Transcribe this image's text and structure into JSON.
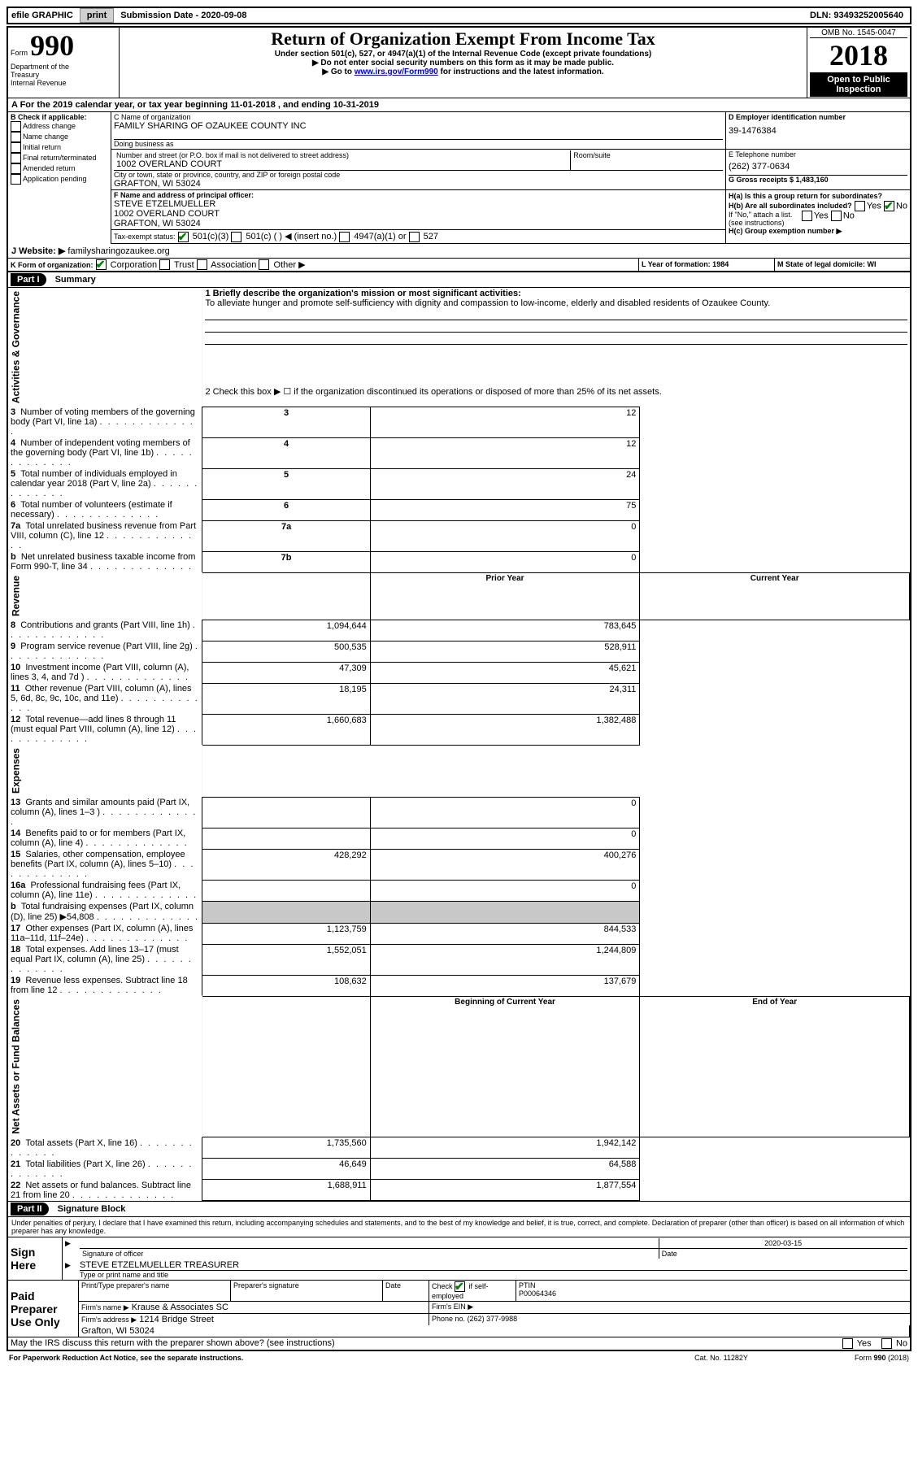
{
  "top_bar": {
    "efile_label": "efile GRAPHIC",
    "print_btn": "print",
    "submission_label": "Submission Date - 2020-09-08",
    "dln": "DLN: 93493252005640"
  },
  "header": {
    "form_word": "Form",
    "form_number": "990",
    "dept1": "Department of the",
    "dept2": "Treasury",
    "dept3": "Internal Revenue",
    "title": "Return of Organization Exempt From Income Tax",
    "subtitle": "Under section 501(c), 527, or 4947(a)(1) of the Internal Revenue Code (except private foundations)",
    "instr1": "▶ Do not enter social security numbers on this form as it may be made public.",
    "instr2_pre": "▶ Go to ",
    "instr2_link": "www.irs.gov/Form990",
    "instr2_post": " for instructions and the latest information.",
    "omb": "OMB No. 1545-0047",
    "year": "2018",
    "open_public": "Open to Public Inspection"
  },
  "line_a": "A For the 2019 calendar year, or tax year beginning 11-01-2018   , and ending 10-31-2019",
  "box_b": {
    "label": "B Check if applicable:",
    "opts": [
      "Address change",
      "Name change",
      "Initial return",
      "Final return/terminated",
      "Amended return",
      "Application pending"
    ]
  },
  "box_c": {
    "name_label": "C Name of organization",
    "name": "FAMILY SHARING OF OZAUKEE COUNTY INC",
    "dba_label": "Doing business as",
    "dba": "",
    "street_label": "Number and street (or P.O. box if mail is not delivered to street address)",
    "room_label": "Room/suite",
    "street": "1002 OVERLAND COURT",
    "city_label": "City or town, state or province, country, and ZIP or foreign postal code",
    "city": "GRAFTON, WI  53024"
  },
  "box_d": {
    "label": "D Employer identification number",
    "value": "39-1476384"
  },
  "box_e": {
    "label": "E Telephone number",
    "value": "(262) 377-0634"
  },
  "box_g": {
    "label": "G Gross receipts $ 1,483,160"
  },
  "box_f": {
    "label": "F  Name and address of principal officer:",
    "line1": "STEVE ETZELMUELLER",
    "line2": "1002 OVERLAND COURT",
    "line3": "GRAFTON, WI  53024"
  },
  "box_h": {
    "ha_label": "H(a)  Is this a group return for subordinates?",
    "ha_yes": "Yes",
    "ha_no": "No",
    "hb_label": "H(b)  Are all subordinates included?",
    "hb_yes": "Yes",
    "hb_no": "No",
    "hb_note": "If \"No,\" attach a list. (see instructions)",
    "hc_label": "H(c)  Group exemption number ▶"
  },
  "tax_exempt": {
    "label": "Tax-exempt status:",
    "opt1": "501(c)(3)",
    "opt2": "501(c) (   ) ◀ (insert no.)",
    "opt3": "4947(a)(1) or",
    "opt4": "527"
  },
  "website": {
    "label": "J   Website: ▶",
    "value": "familysharingozaukee.org"
  },
  "line_k": {
    "label": "K Form of organization:",
    "opts": [
      "Corporation",
      "Trust",
      "Association",
      "Other ▶"
    ]
  },
  "line_l": {
    "label": "L Year of formation: 1984"
  },
  "line_m": {
    "label": "M State of legal domicile: WI"
  },
  "part1": {
    "header": "Part I",
    "title": "Summary",
    "line1_label": "1   Briefly describe the organization's mission or most significant activities:",
    "mission": "To alleviate hunger and promote self-sufficiency with dignity and compassion to low-income, elderly and disabled residents of Ozaukee County.",
    "line2": "2   Check this box ▶ ☐  if the organization discontinued its operations or disposed of more than 25% of its net assets.",
    "rows_gov": [
      {
        "n": "3",
        "t": "Number of voting members of the governing body (Part VI, line 1a)",
        "box": "3",
        "v": "12"
      },
      {
        "n": "4",
        "t": "Number of independent voting members of the governing body (Part VI, line 1b)",
        "box": "4",
        "v": "12"
      },
      {
        "n": "5",
        "t": "Total number of individuals employed in calendar year 2018 (Part V, line 2a)",
        "box": "5",
        "v": "24"
      },
      {
        "n": "6",
        "t": "Total number of volunteers (estimate if necessary)",
        "box": "6",
        "v": "75"
      },
      {
        "n": "7a",
        "t": "Total unrelated business revenue from Part VIII, column (C), line 12",
        "box": "7a",
        "v": "0"
      },
      {
        "n": "b",
        "t": "Net unrelated business taxable income from Form 990-T, line 34",
        "box": "7b",
        "v": "0"
      }
    ],
    "col_prior": "Prior Year",
    "col_current": "Current Year",
    "revenue": [
      {
        "n": "8",
        "t": "Contributions and grants (Part VIII, line 1h)",
        "p": "1,094,644",
        "c": "783,645"
      },
      {
        "n": "9",
        "t": "Program service revenue (Part VIII, line 2g)",
        "p": "500,535",
        "c": "528,911"
      },
      {
        "n": "10",
        "t": "Investment income (Part VIII, column (A), lines 3, 4, and 7d )",
        "p": "47,309",
        "c": "45,621"
      },
      {
        "n": "11",
        "t": "Other revenue (Part VIII, column (A), lines 5, 6d, 8c, 9c, 10c, and 11e)",
        "p": "18,195",
        "c": "24,311"
      },
      {
        "n": "12",
        "t": "Total revenue—add lines 8 through 11 (must equal Part VIII, column (A), line 12)",
        "p": "1,660,683",
        "c": "1,382,488"
      }
    ],
    "expenses": [
      {
        "n": "13",
        "t": "Grants and similar amounts paid (Part IX, column (A), lines 1–3 )",
        "p": "",
        "c": "0"
      },
      {
        "n": "14",
        "t": "Benefits paid to or for members (Part IX, column (A), line 4)",
        "p": "",
        "c": "0"
      },
      {
        "n": "15",
        "t": "Salaries, other compensation, employee benefits (Part IX, column (A), lines 5–10)",
        "p": "428,292",
        "c": "400,276"
      },
      {
        "n": "16a",
        "t": "Professional fundraising fees (Part IX, column (A), line 11e)",
        "p": "",
        "c": "0"
      },
      {
        "n": "b",
        "t": "Total fundraising expenses (Part IX, column (D), line 25) ▶54,808",
        "p": "SHADE",
        "c": "SHADE"
      },
      {
        "n": "17",
        "t": "Other expenses (Part IX, column (A), lines 11a–11d, 11f–24e)",
        "p": "1,123,759",
        "c": "844,533"
      },
      {
        "n": "18",
        "t": "Total expenses. Add lines 13–17 (must equal Part IX, column (A), line 25)",
        "p": "1,552,051",
        "c": "1,244,809"
      },
      {
        "n": "19",
        "t": "Revenue less expenses. Subtract line 18 from line 12",
        "p": "108,632",
        "c": "137,679"
      }
    ],
    "col_begin": "Beginning of Current Year",
    "col_end": "End of Year",
    "netassets": [
      {
        "n": "20",
        "t": "Total assets (Part X, line 16)",
        "p": "1,735,560",
        "c": "1,942,142"
      },
      {
        "n": "21",
        "t": "Total liabilities (Part X, line 26)",
        "p": "46,649",
        "c": "64,588"
      },
      {
        "n": "22",
        "t": "Net assets or fund balances. Subtract line 21 from line 20",
        "p": "1,688,911",
        "c": "1,877,554"
      }
    ],
    "side_gov": "Activities & Governance",
    "side_rev": "Revenue",
    "side_exp": "Expenses",
    "side_net": "Net Assets or Fund Balances"
  },
  "part2": {
    "header": "Part II",
    "title": "Signature Block",
    "jurat": "Under penalties of perjury, I declare that I have examined this return, including accompanying schedules and statements, and to the best of my knowledge and belief, it is true, correct, and complete. Declaration of preparer (other than officer) is based on all information of which preparer has any knowledge.",
    "sign_here": "Sign Here",
    "sig_officer": "Signature of officer",
    "sig_date": "Date",
    "sig_date_val": "2020-03-15",
    "sig_name": "STEVE ETZELMUELLER  TREASURER",
    "sig_type": "Type or print name and title",
    "paid_prep": "Paid Preparer Use Only",
    "pp_name_label": "Print/Type preparer's name",
    "pp_sig_label": "Preparer's signature",
    "pp_date_label": "Date",
    "pp_check": "Check ☑ if self-employed",
    "pp_ptin_label": "PTIN",
    "pp_ptin": "P00064346",
    "pp_firm_label": "Firm's name   ▶",
    "pp_firm": "Krause & Associates SC",
    "pp_ein_label": "Firm's EIN ▶",
    "pp_addr_label": "Firm's address ▶",
    "pp_addr1": "1214 Bridge Street",
    "pp_addr2": "Grafton, WI  53024",
    "pp_phone_label": "Phone no.",
    "pp_phone": "(262) 377-9988",
    "discuss": "May the IRS discuss this return with the preparer shown above? (see instructions)",
    "discuss_yes": "Yes",
    "discuss_no": "No"
  },
  "footer": {
    "left": "For Paperwork Reduction Act Notice, see the separate instructions.",
    "mid": "Cat. No. 11282Y",
    "right": "Form 990 (2018)"
  }
}
